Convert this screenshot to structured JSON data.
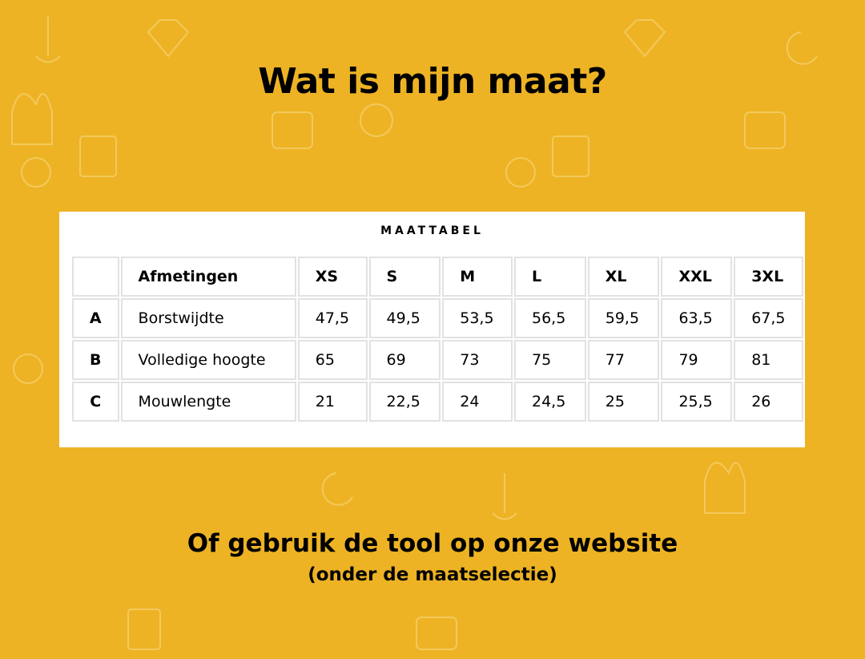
{
  "title": "Wat is mijn maat?",
  "table": {
    "caption": "MAATTABEL",
    "headers": [
      "",
      "Afmetingen",
      "XS",
      "S",
      "M",
      "L",
      "XL",
      "XXL",
      "3XL"
    ],
    "rows": [
      [
        "A",
        "Borstwijdte",
        "47,5",
        "49,5",
        "53,5",
        "56,5",
        "59,5",
        "63,5",
        "67,5"
      ],
      [
        "B",
        "Volledige hoogte",
        "65",
        "69",
        "73",
        "75",
        "77",
        "79",
        "81"
      ],
      [
        "C",
        "Mouwlengte",
        "21",
        "22,5",
        "24",
        "24,5",
        "25",
        "25,5",
        "26"
      ]
    ]
  },
  "footer": {
    "line1": "Of gebruik de tool op onze website",
    "line2": "(onder de maatselectie)"
  },
  "colors": {
    "background": "#edb324",
    "pattern": "#f5d57a"
  }
}
